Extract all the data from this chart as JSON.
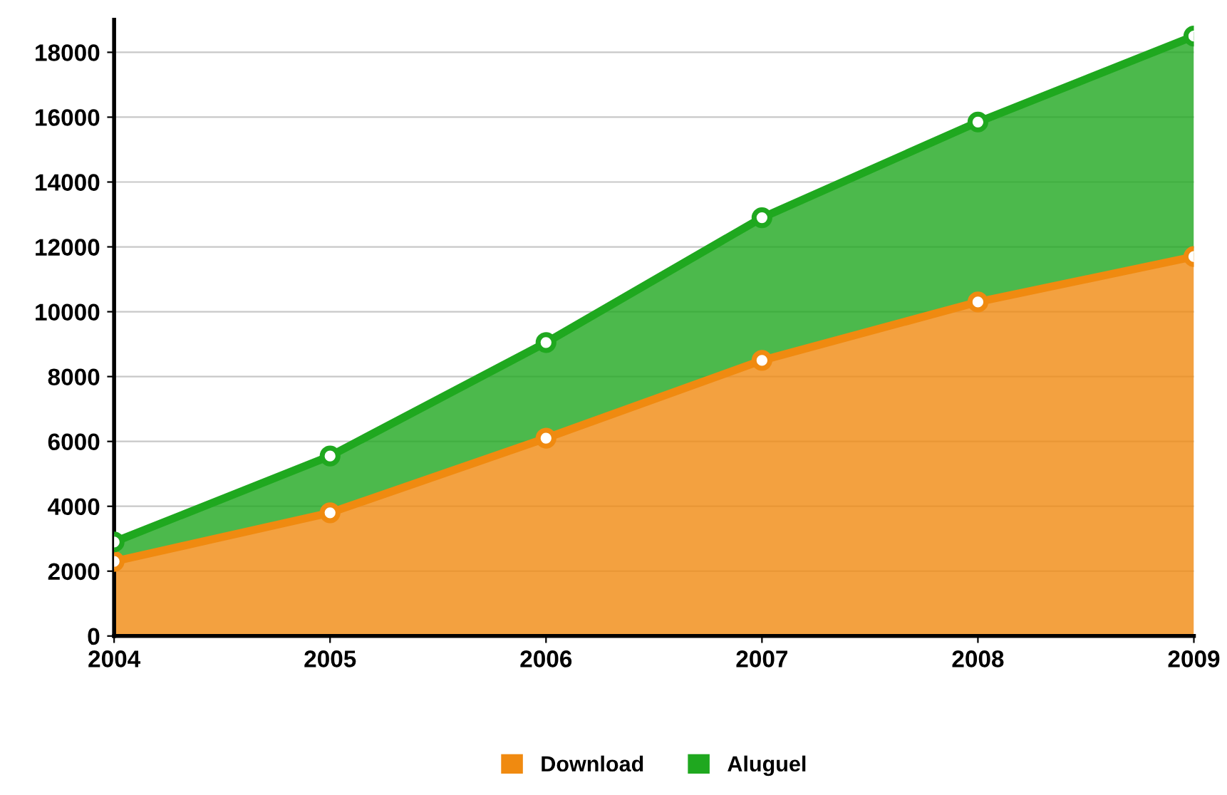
{
  "chart_data": {
    "type": "area",
    "stacked": true,
    "x": [
      2004,
      2005,
      2006,
      2007,
      2008,
      2009
    ],
    "series": [
      {
        "name": "Download",
        "color": "#f08a10",
        "values": [
          2300,
          3800,
          6100,
          8500,
          10300,
          11700
        ]
      },
      {
        "name": "Aluguel",
        "color": "#1fa81f",
        "values": [
          600,
          1750,
          2950,
          4400,
          5550,
          6800
        ]
      }
    ],
    "xlim": [
      2004,
      2009
    ],
    "xticks": [
      2004,
      2005,
      2006,
      2007,
      2008,
      2009
    ],
    "ylim": [
      0,
      19000
    ],
    "yticks": [
      0,
      2000,
      4000,
      6000,
      8000,
      10000,
      12000,
      14000,
      16000,
      18000
    ],
    "grid": "y",
    "legend": "bottom",
    "marker": "circle"
  }
}
